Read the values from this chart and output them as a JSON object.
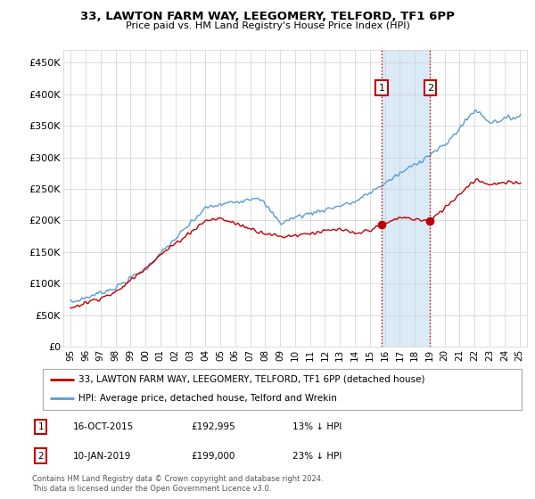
{
  "title": "33, LAWTON FARM WAY, LEEGOMERY, TELFORD, TF1 6PP",
  "subtitle": "Price paid vs. HM Land Registry's House Price Index (HPI)",
  "legend_line1": "33, LAWTON FARM WAY, LEEGOMERY, TELFORD, TF1 6PP (detached house)",
  "legend_line2": "HPI: Average price, detached house, Telford and Wrekin",
  "annotation1_label": "1",
  "annotation1_date": "16-OCT-2015",
  "annotation1_price": "£192,995",
  "annotation1_hpi": "13% ↓ HPI",
  "annotation2_label": "2",
  "annotation2_date": "10-JAN-2019",
  "annotation2_price": "£199,000",
  "annotation2_hpi": "23% ↓ HPI",
  "footer": "Contains HM Land Registry data © Crown copyright and database right 2024.\nThis data is licensed under the Open Government Licence v3.0.",
  "sale1_year": 2015.79,
  "sale1_price": 192995,
  "sale2_year": 2019.03,
  "sale2_price": 199000,
  "hpi_color": "#5b9bd5",
  "price_color": "#c00000",
  "shade_color": "#daeaf7",
  "ylim_min": 0,
  "ylim_max": 470000,
  "xlim_min": 1994.5,
  "xlim_max": 2025.5,
  "yticks": [
    0,
    50000,
    100000,
    150000,
    200000,
    250000,
    300000,
    350000,
    400000,
    450000
  ],
  "ytick_labels": [
    "£0",
    "£50K",
    "£100K",
    "£150K",
    "£200K",
    "£250K",
    "£300K",
    "£350K",
    "£400K",
    "£450K"
  ],
  "xticks": [
    1995,
    1996,
    1997,
    1998,
    1999,
    2000,
    2001,
    2002,
    2003,
    2004,
    2005,
    2006,
    2007,
    2008,
    2009,
    2010,
    2011,
    2012,
    2013,
    2014,
    2015,
    2016,
    2017,
    2018,
    2019,
    2020,
    2021,
    2022,
    2023,
    2024,
    2025
  ],
  "xtick_labels": [
    "95",
    "96",
    "97",
    "98",
    "99",
    "00",
    "01",
    "02",
    "03",
    "04",
    "05",
    "06",
    "07",
    "08",
    "09",
    "10",
    "11",
    "12",
    "13",
    "14",
    "15",
    "16",
    "17",
    "18",
    "19",
    "20",
    "21",
    "22",
    "23",
    "24",
    "25"
  ]
}
